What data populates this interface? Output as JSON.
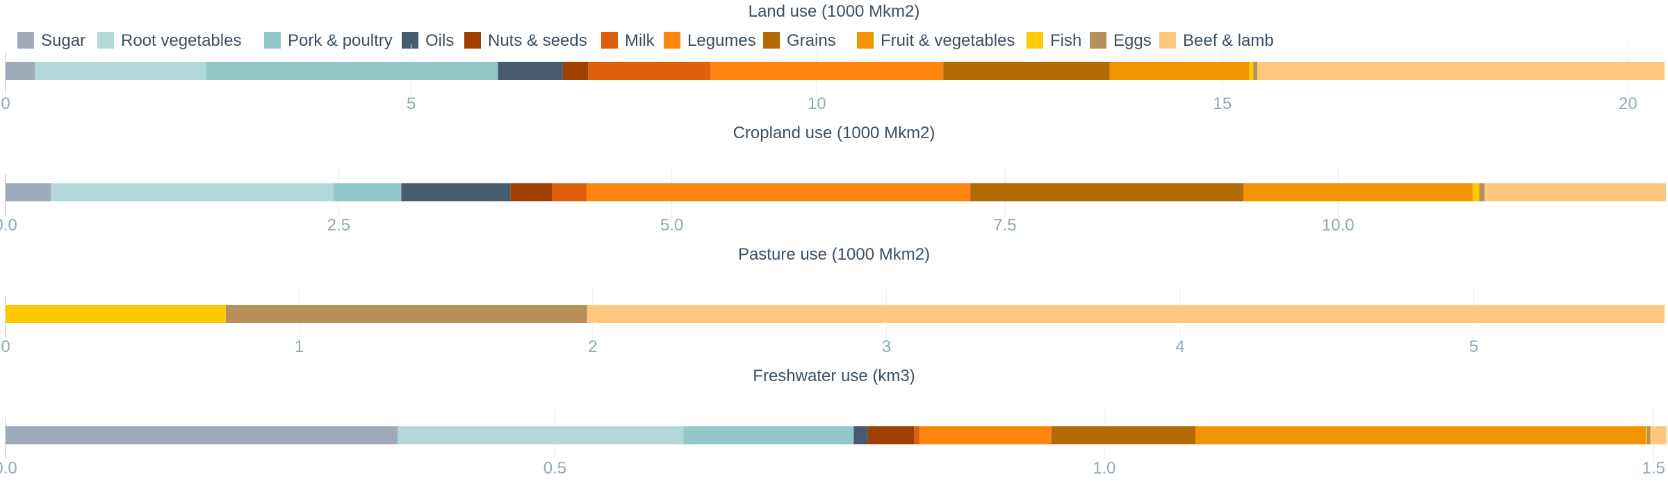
{
  "chart_data": {
    "type": "bar",
    "orientation": "horizontal-stacked",
    "grid": true,
    "legend_position": "top",
    "categories": [
      "Sugar",
      "Root vegetables",
      "Pork & poultry",
      "Oils",
      "Nuts & seeds",
      "Milk",
      "Legumes",
      "Grains",
      "Fruit & vegetables",
      "Fish",
      "Eggs",
      "Beef & lamb"
    ],
    "colors": [
      "#9fabb9",
      "#b2d8d8",
      "#93c8c8",
      "#475b6e",
      "#a04000",
      "#de600c",
      "#fd8510",
      "#b26b03",
      "#f29302",
      "#ffc900",
      "#b59059",
      "#fdc87d"
    ],
    "panels": [
      {
        "title": "Land use (1000 Mkm2)",
        "xlim": [
          0,
          20.45
        ],
        "ticks": [
          0,
          5,
          10,
          15,
          20
        ],
        "tick_labels": [
          "0",
          "5",
          "10",
          "15",
          "20"
        ],
        "values": [
          0.36,
          2.11,
          3.6,
          0.8,
          0.31,
          1.51,
          2.87,
          2.05,
          1.72,
          0.05,
          0.05,
          5.02
        ]
      },
      {
        "title": "Cropland use (1000 Mkm2)",
        "xlim": [
          0,
          12.45
        ],
        "ticks": [
          0,
          2.5,
          5,
          7.5,
          10
        ],
        "tick_labels": [
          "0.0",
          "2.5",
          "5.0",
          "7.5",
          "10.0"
        ],
        "values": [
          0.34,
          2.12,
          0.51,
          0.82,
          0.31,
          0.26,
          2.88,
          2.05,
          1.72,
          0.05,
          0.04,
          1.36
        ]
      },
      {
        "title": "Pasture use (1000 Mkm2)",
        "xlim": [
          0,
          5.65
        ],
        "ticks": [
          0,
          1,
          2,
          3,
          4,
          5
        ],
        "tick_labels": [
          "0",
          "1",
          "2",
          "3",
          "4",
          "5"
        ],
        "values": [
          0,
          0,
          0,
          0,
          0,
          0,
          0,
          0,
          0,
          0.75,
          1.23,
          3.67
        ]
      },
      {
        "title": "Freshwater use (km3)",
        "xlim": [
          0,
          1.51
        ],
        "ticks": [
          0,
          0.5,
          1,
          1.5
        ],
        "tick_labels": [
          "0.0",
          "0.5",
          "1.0",
          "1.5"
        ],
        "values": [
          0.357,
          0.26,
          0.155,
          0.013,
          0.042,
          0.005,
          0.12,
          0.131,
          0.41,
          0.001,
          0.003,
          0.015
        ]
      }
    ]
  }
}
